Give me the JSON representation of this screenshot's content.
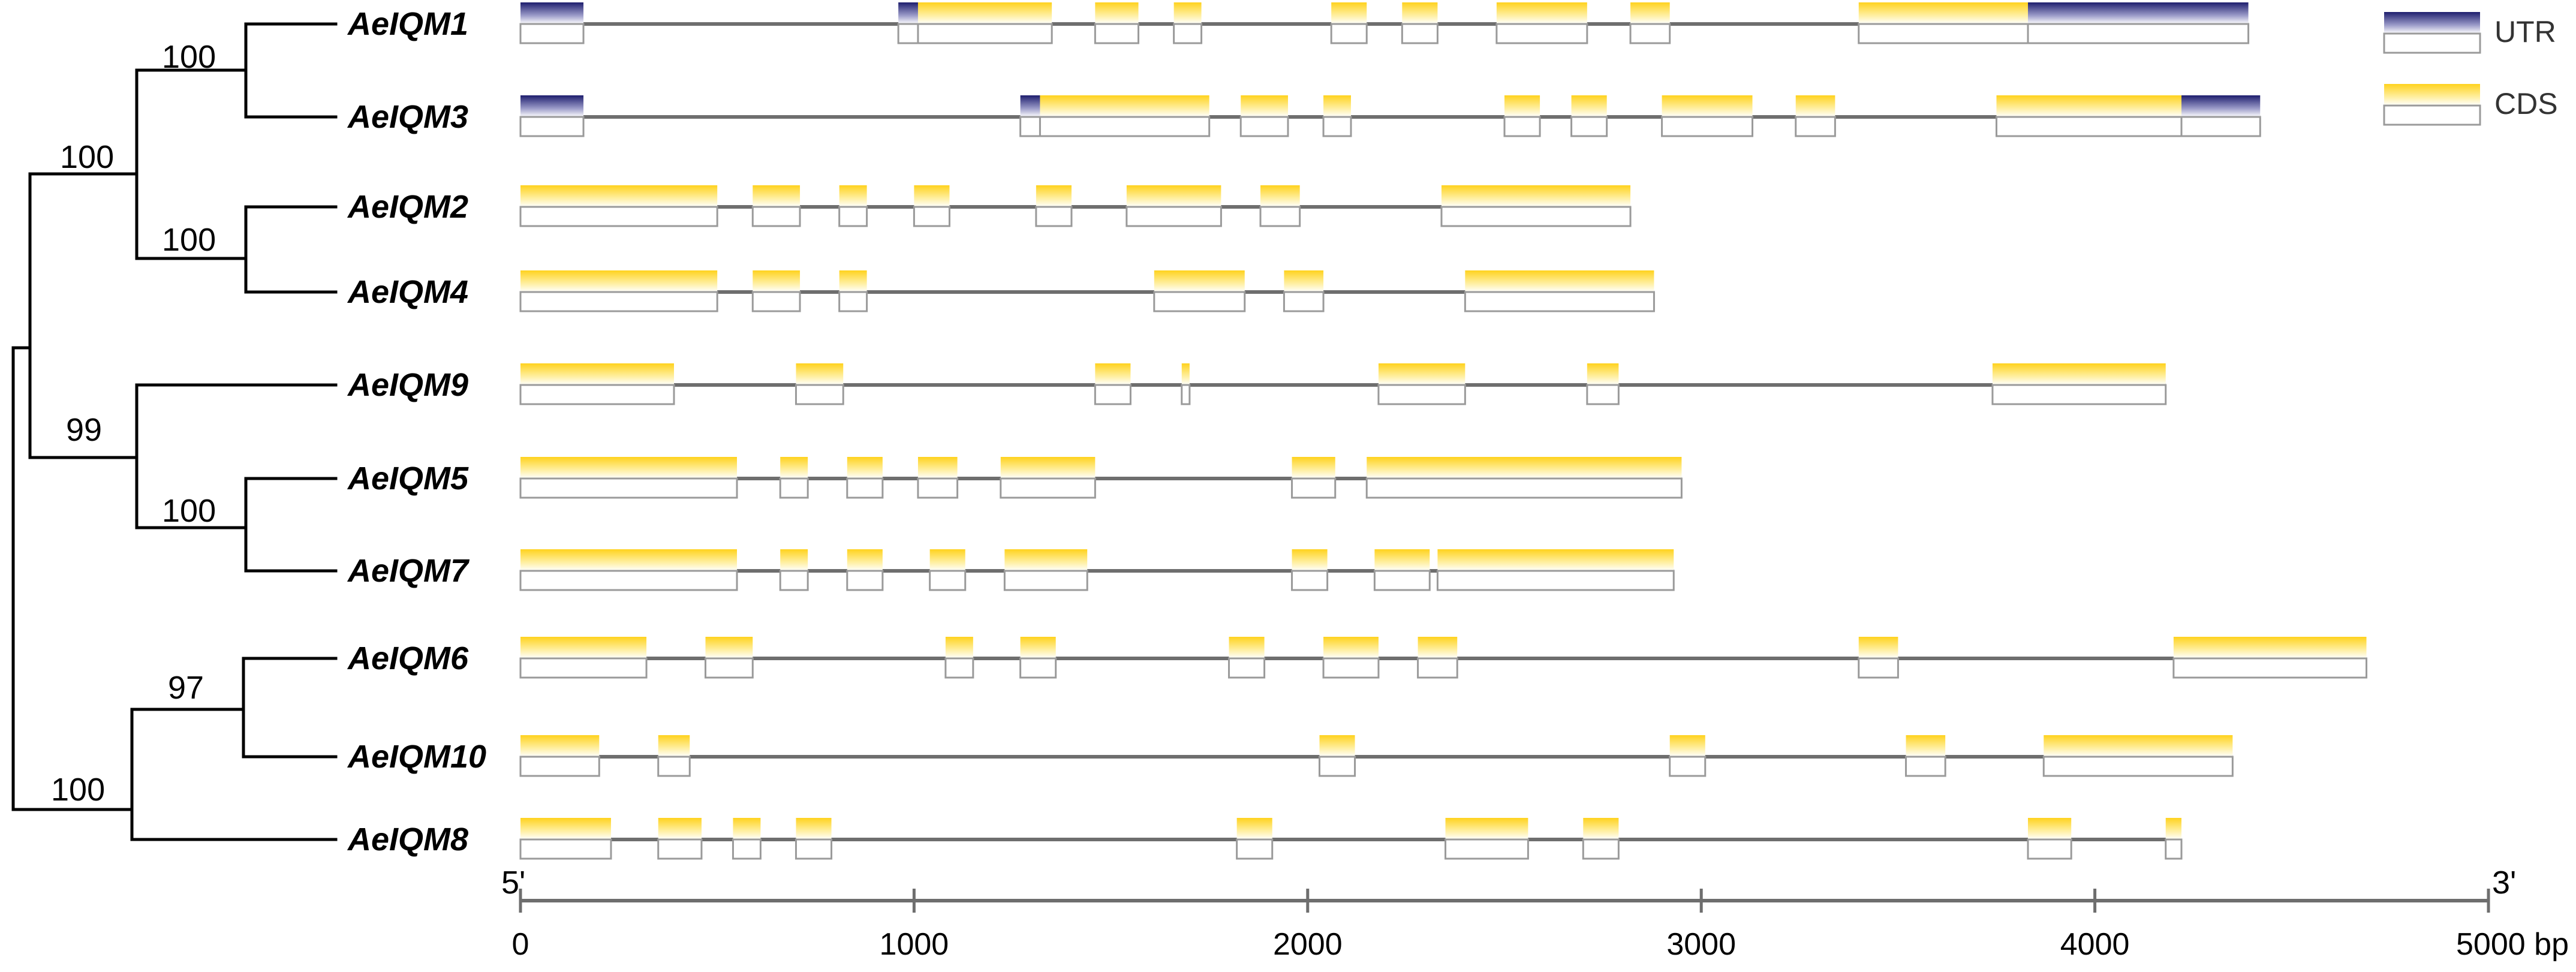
{
  "genes": [
    {
      "name": "AeIQM1",
      "length": 4390,
      "utr": [
        [
          0,
          160
        ],
        [
          960,
          1010
        ],
        [
          3830,
          4390
        ]
      ],
      "cds": [
        [
          1010,
          1350
        ],
        [
          1460,
          1570
        ],
        [
          1660,
          1730
        ],
        [
          2060,
          2150
        ],
        [
          2240,
          2330
        ],
        [
          2480,
          2710
        ],
        [
          2820,
          2920
        ],
        [
          3400,
          3830
        ]
      ]
    },
    {
      "name": "AeIQM3",
      "length": 4420,
      "utr": [
        [
          0,
          160
        ],
        [
          1270,
          1320
        ],
        [
          4220,
          4420
        ]
      ],
      "cds": [
        [
          1320,
          1750
        ],
        [
          1830,
          1950
        ],
        [
          2040,
          2110
        ],
        [
          2500,
          2590
        ],
        [
          2670,
          2760
        ],
        [
          2900,
          3130
        ],
        [
          3240,
          3340
        ],
        [
          3750,
          4220
        ]
      ]
    },
    {
      "name": "AeIQM2",
      "length": 2820,
      "utr": [],
      "cds": [
        [
          0,
          500
        ],
        [
          590,
          710
        ],
        [
          810,
          880
        ],
        [
          1000,
          1090
        ],
        [
          1310,
          1400
        ],
        [
          1540,
          1780
        ],
        [
          1880,
          1980
        ],
        [
          2340,
          2820
        ]
      ]
    },
    {
      "name": "AeIQM4",
      "length": 2880,
      "utr": [],
      "cds": [
        [
          0,
          500
        ],
        [
          590,
          710
        ],
        [
          810,
          880
        ],
        [
          1610,
          1840
        ],
        [
          1940,
          2040
        ],
        [
          2400,
          2880
        ]
      ]
    },
    {
      "name": "AeIQM9",
      "length": 4180,
      "utr": [],
      "cds": [
        [
          0,
          390
        ],
        [
          700,
          820
        ],
        [
          1460,
          1550
        ],
        [
          1680,
          1700
        ],
        [
          2180,
          2400
        ],
        [
          2710,
          2790
        ],
        [
          3740,
          4180
        ]
      ]
    },
    {
      "name": "AeIQM5",
      "length": 2950,
      "utr": [],
      "cds": [
        [
          0,
          550
        ],
        [
          660,
          730
        ],
        [
          830,
          920
        ],
        [
          1010,
          1110
        ],
        [
          1220,
          1460
        ],
        [
          1960,
          2070
        ],
        [
          2150,
          2950
        ]
      ]
    },
    {
      "name": "AeIQM7",
      "length": 2930,
      "utr": [],
      "cds": [
        [
          0,
          550
        ],
        [
          660,
          730
        ],
        [
          830,
          920
        ],
        [
          1040,
          1130
        ],
        [
          1230,
          1440
        ],
        [
          1960,
          2050
        ],
        [
          2170,
          2310
        ],
        [
          2330,
          2930
        ]
      ]
    },
    {
      "name": "AeIQM6",
      "length": 4690,
      "utr": [],
      "cds": [
        [
          0,
          320
        ],
        [
          470,
          590
        ],
        [
          1080,
          1150
        ],
        [
          1270,
          1360
        ],
        [
          1800,
          1890
        ],
        [
          2040,
          2180
        ],
        [
          2280,
          2380
        ],
        [
          3400,
          3500
        ],
        [
          4200,
          4690
        ]
      ]
    },
    {
      "name": "AeIQM10",
      "length": 4350,
      "utr": [],
      "cds": [
        [
          0,
          200
        ],
        [
          350,
          430
        ],
        [
          2030,
          2120
        ],
        [
          2920,
          3010
        ],
        [
          3520,
          3620
        ],
        [
          3870,
          4350
        ]
      ]
    },
    {
      "name": "AeIQM8",
      "length": 4220,
      "utr": [],
      "cds": [
        [
          0,
          230
        ],
        [
          350,
          460
        ],
        [
          540,
          610
        ],
        [
          700,
          790
        ],
        [
          1820,
          1910
        ],
        [
          2350,
          2560
        ],
        [
          2700,
          2790
        ],
        [
          3830,
          3940
        ],
        [
          4180,
          4220
        ]
      ]
    }
  ],
  "bootstrap": [
    "100",
    "100",
    "100",
    "99",
    "100",
    "97",
    "100"
  ],
  "legend": {
    "utr_label": "UTR",
    "cds_label": "CDS"
  },
  "axis": {
    "min": 0,
    "max": 5000,
    "ticks": [
      "0",
      "1000",
      "2000",
      "3000",
      "4000",
      "5000 bp"
    ],
    "tick_values": [
      0,
      1000,
      2000,
      3000,
      4000,
      5000
    ],
    "left_end_label": "5'",
    "right_end_label": "3'"
  },
  "colors": {
    "cds": "#FFD21E",
    "utr": "#1E1E6E",
    "intron": "#6E6E6E",
    "tree": "#000000"
  }
}
